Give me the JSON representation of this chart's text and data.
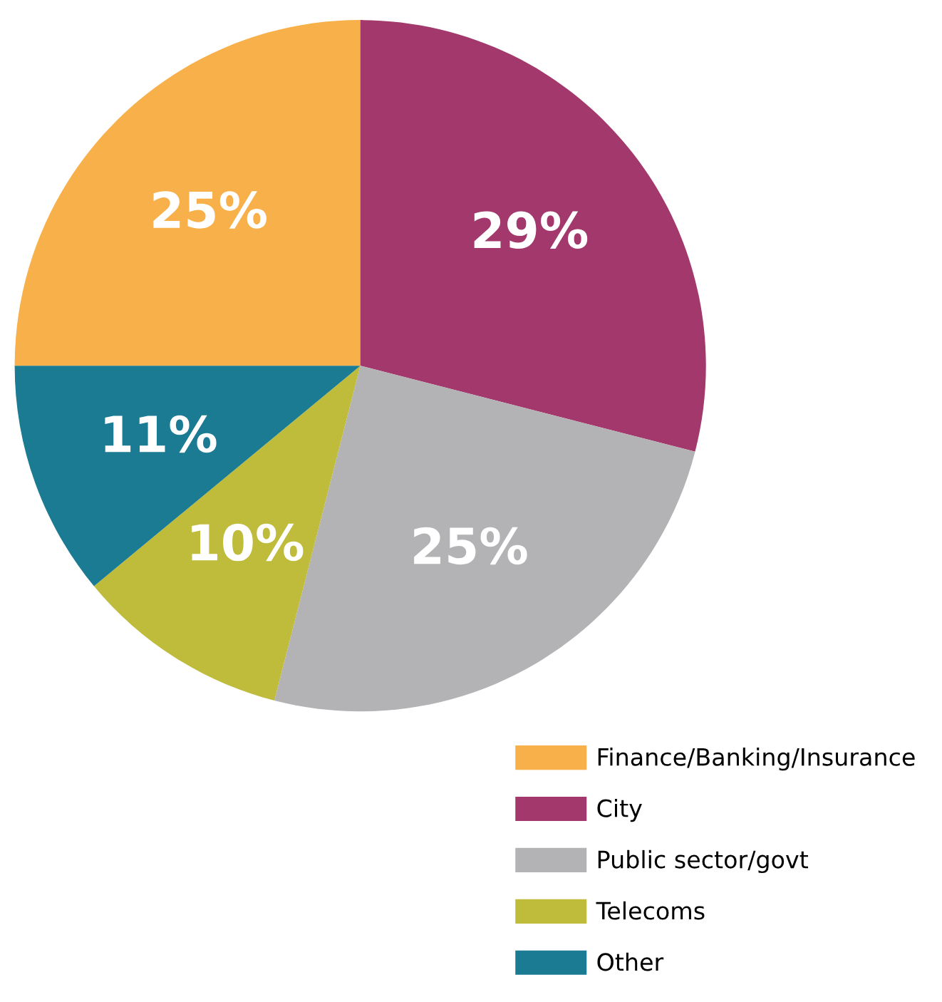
{
  "chart_data": {
    "type": "pie",
    "categories": [
      "Finance/Banking/Insurance",
      "City",
      "Public sector/govt",
      "Telecoms",
      "Other"
    ],
    "values": [
      25,
      29,
      25,
      10,
      11
    ],
    "colors": [
      "#f8b04a",
      "#a2386c",
      "#b3b3b5",
      "#bfbb3b",
      "#1a7b92"
    ],
    "value_labels": [
      "25%",
      "29%",
      "25%",
      "10%",
      "11%"
    ],
    "legend": "bottom right"
  }
}
